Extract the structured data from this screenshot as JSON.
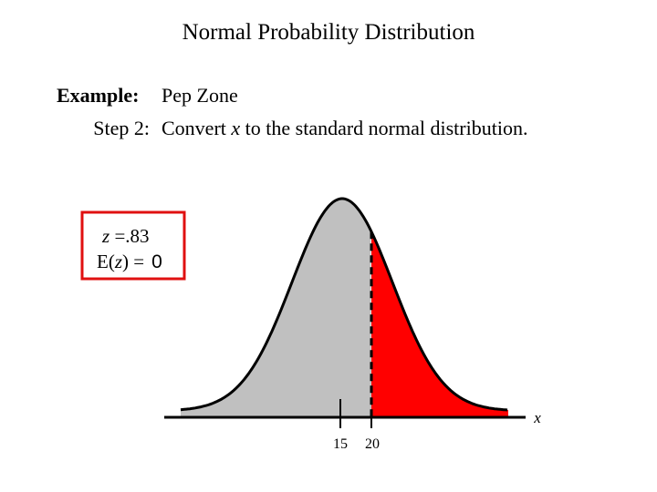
{
  "title": "Normal Probability Distribution",
  "example": {
    "label": "Example:",
    "text": "Pep Zone"
  },
  "step": {
    "label": "Step 2:",
    "text_before": "Convert",
    "variable": "x",
    "text_after": "to the standard normal distribution."
  },
  "box": {
    "z_label": "z",
    "z_value": "=.83",
    "e_open": "E(",
    "e_var": "z",
    "e_close": ") =",
    "e_value": "0"
  },
  "axis": {
    "ticks": [
      "15",
      "20"
    ],
    "label": "x"
  }
}
